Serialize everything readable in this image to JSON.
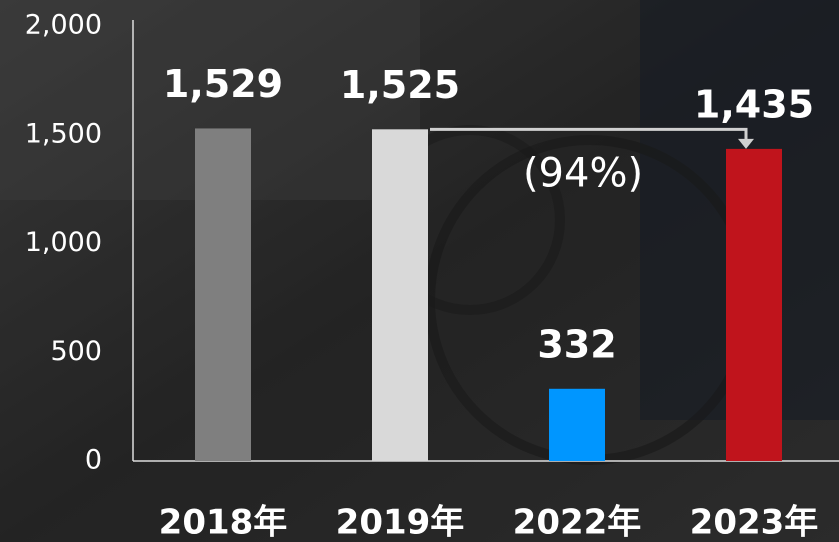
{
  "chart_data": {
    "type": "bar",
    "categories": [
      "2018年",
      "2019年",
      "2022年",
      "2023年"
    ],
    "values": [
      1529,
      1525,
      332,
      1435
    ],
    "value_labels": [
      "1,529",
      "1,525",
      "332",
      "1,435"
    ],
    "colors": [
      "#7f7f7f",
      "#d9d9d9",
      "#0096ff",
      "#c0141c"
    ],
    "ylim": [
      0,
      2000
    ],
    "yticks": [
      0,
      500,
      {
        "value": 1000,
        "label": "1,000"
      },
      {
        "value": 1500,
        "label": "1,500"
      },
      {
        "value": 2000,
        "label": "2,000"
      }
    ],
    "annotation": "(94%)"
  }
}
